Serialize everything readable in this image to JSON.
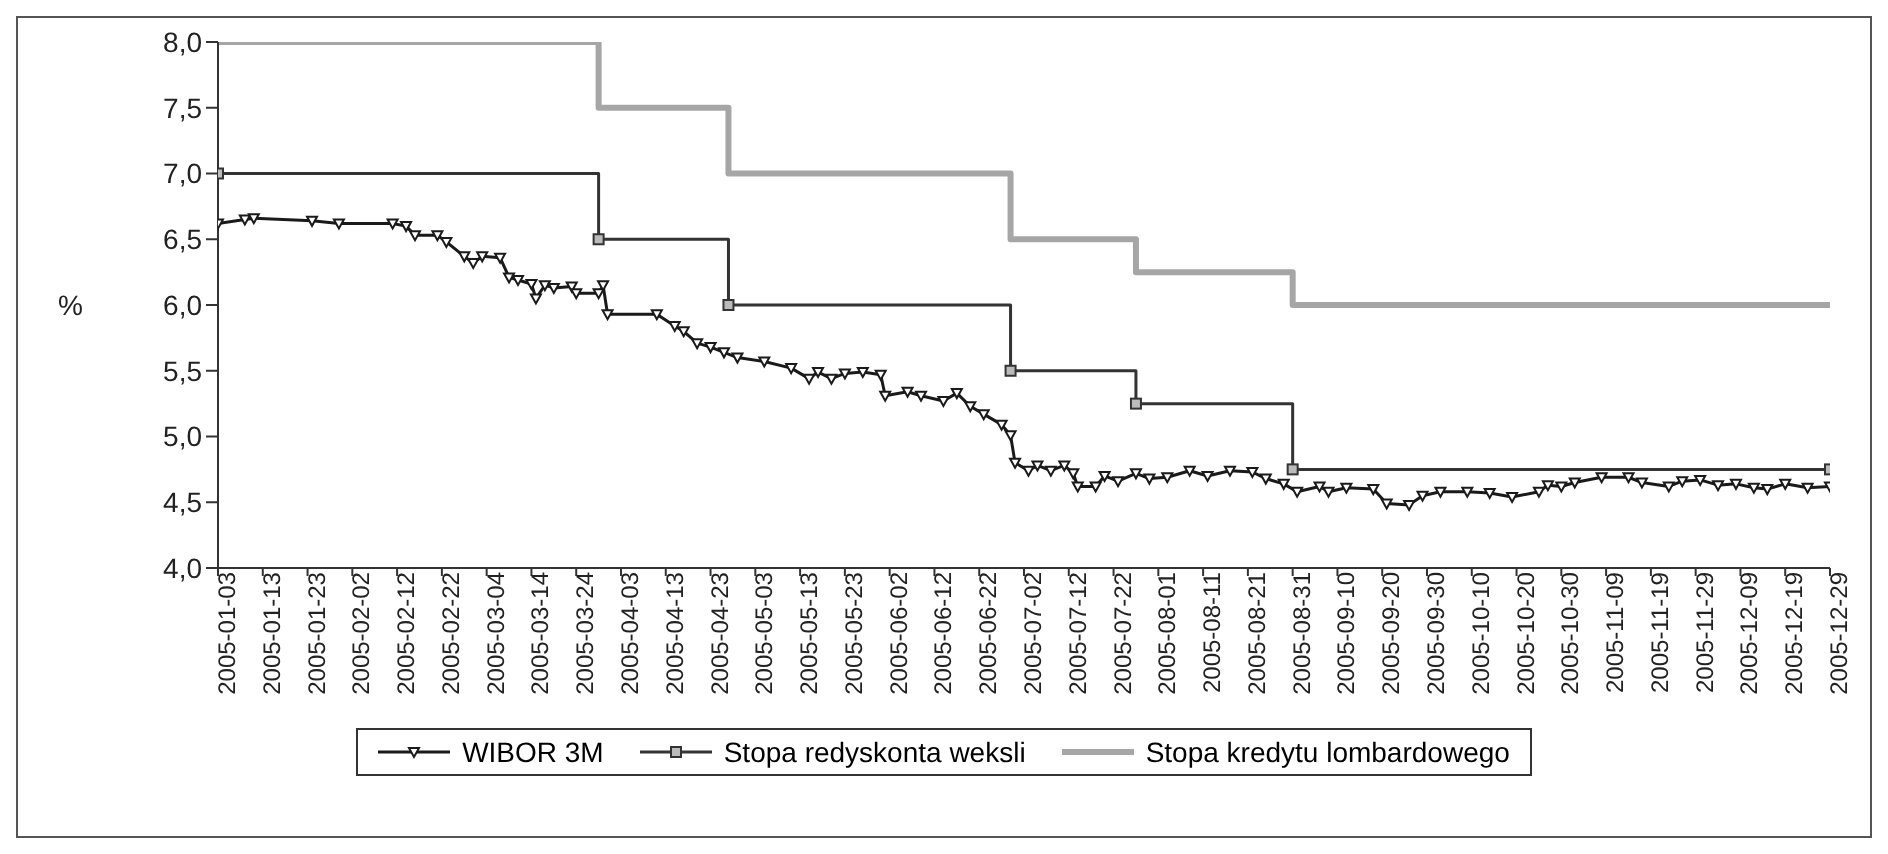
{
  "chart_data": {
    "type": "line",
    "ylabel": "%",
    "xlim": [
      "2005-01-03",
      "2005-12-29"
    ],
    "xticks": [
      "2005-01-03",
      "2005-01-13",
      "2005-01-23",
      "2005-02-02",
      "2005-02-12",
      "2005-02-22",
      "2005-03-04",
      "2005-03-14",
      "2005-03-24",
      "2005-04-03",
      "2005-04-13",
      "2005-04-23",
      "2005-05-03",
      "2005-05-13",
      "2005-05-23",
      "2005-06-02",
      "2005-06-12",
      "2005-06-22",
      "2005-07-02",
      "2005-07-12",
      "2005-07-22",
      "2005-08-01",
      "2005-08-11",
      "2005-08-21",
      "2005-08-31",
      "2005-09-10",
      "2005-09-20",
      "2005-09-30",
      "2005-10-10",
      "2005-10-20",
      "2005-10-30",
      "2005-11-09",
      "2005-11-19",
      "2005-11-29",
      "2005-12-09",
      "2005-12-19",
      "2005-12-29"
    ],
    "ylim": [
      4,
      8
    ],
    "yticks": [
      {
        "value": 4,
        "label": "4,0"
      },
      {
        "value": 4.5,
        "label": "4,5"
      },
      {
        "value": 5,
        "label": "5,0"
      },
      {
        "value": 5.5,
        "label": "5,5"
      },
      {
        "value": 6,
        "label": "6,0"
      },
      {
        "value": 6.5,
        "label": "6,5"
      },
      {
        "value": 7,
        "label": "7,0"
      },
      {
        "value": 7.5,
        "label": "7,5"
      },
      {
        "value": 8,
        "label": "8,0"
      }
    ],
    "legend": "bottom",
    "series": [
      {
        "name": "WIBOR 3M",
        "type": "line",
        "color": "#1a1a1a",
        "marker": "triangle",
        "x": [
          "2005-01-03",
          "2005-01-09",
          "2005-01-11",
          "2005-01-24",
          "2005-01-30",
          "2005-02-11",
          "2005-02-14",
          "2005-02-16",
          "2005-02-21",
          "2005-02-23",
          "2005-02-27",
          "2005-03-01",
          "2005-03-03",
          "2005-03-07",
          "2005-03-09",
          "2005-03-11",
          "2005-03-14",
          "2005-03-15",
          "2005-03-17",
          "2005-03-19",
          "2005-03-23",
          "2005-03-24",
          "2005-03-29",
          "2005-03-30",
          "2005-03-31",
          "2005-04-11",
          "2005-04-15",
          "2005-04-17",
          "2005-04-20",
          "2005-04-23",
          "2005-04-26",
          "2005-04-29",
          "2005-05-05",
          "2005-05-11",
          "2005-05-15",
          "2005-05-17",
          "2005-05-20",
          "2005-05-23",
          "2005-05-27",
          "2005-05-31",
          "2005-06-01",
          "2005-06-06",
          "2005-06-09",
          "2005-06-14",
          "2005-06-17",
          "2005-06-20",
          "2005-06-23",
          "2005-06-27",
          "2005-06-29",
          "2005-06-30",
          "2005-07-03",
          "2005-07-05",
          "2005-07-08",
          "2005-07-11",
          "2005-07-13",
          "2005-07-14",
          "2005-07-18",
          "2005-07-20",
          "2005-07-23",
          "2005-07-27",
          "2005-07-30",
          "2005-08-03",
          "2005-08-08",
          "2005-08-12",
          "2005-08-17",
          "2005-08-22",
          "2005-08-25",
          "2005-08-29",
          "2005-09-01",
          "2005-09-06",
          "2005-09-08",
          "2005-09-12",
          "2005-09-18",
          "2005-09-21",
          "2005-09-26",
          "2005-09-29",
          "2005-10-03",
          "2005-10-09",
          "2005-10-14",
          "2005-10-19",
          "2005-10-25",
          "2005-10-27",
          "2005-10-30",
          "2005-11-02",
          "2005-11-08",
          "2005-11-14",
          "2005-11-17",
          "2005-11-23",
          "2005-11-26",
          "2005-11-30",
          "2005-12-04",
          "2005-12-08",
          "2005-12-12",
          "2005-12-15",
          "2005-12-19",
          "2005-12-24",
          "2005-12-29"
        ],
        "values": [
          6.62,
          6.65,
          6.66,
          6.64,
          6.62,
          6.62,
          6.6,
          6.53,
          6.53,
          6.48,
          6.37,
          6.32,
          6.37,
          6.36,
          6.21,
          6.19,
          6.16,
          6.05,
          6.15,
          6.13,
          6.14,
          6.09,
          6.09,
          6.15,
          5.93,
          5.93,
          5.84,
          5.8,
          5.71,
          5.68,
          5.64,
          5.6,
          5.57,
          5.52,
          5.44,
          5.49,
          5.44,
          5.48,
          5.49,
          5.47,
          5.31,
          5.34,
          5.31,
          5.27,
          5.33,
          5.23,
          5.17,
          5.09,
          5.01,
          4.8,
          4.74,
          4.78,
          4.74,
          4.78,
          4.72,
          4.62,
          4.62,
          4.7,
          4.66,
          4.72,
          4.68,
          4.69,
          4.74,
          4.7,
          4.74,
          4.73,
          4.68,
          4.64,
          4.58,
          4.62,
          4.58,
          4.61,
          4.6,
          4.49,
          4.48,
          4.55,
          4.58,
          4.58,
          4.57,
          4.54,
          4.58,
          4.63,
          4.62,
          4.65,
          4.69,
          4.69,
          4.65,
          4.62,
          4.66,
          4.67,
          4.63,
          4.64,
          4.61,
          4.6,
          4.64,
          4.61,
          4.62
        ]
      },
      {
        "name": "Stopa redyskonta weksli",
        "type": "step",
        "color": "#333333",
        "marker": "square",
        "x": [
          "2005-01-03",
          "2005-03-29",
          "2005-04-27",
          "2005-06-29",
          "2005-07-27",
          "2005-08-31",
          "2005-12-29"
        ],
        "values": [
          7,
          6.5,
          6,
          5.5,
          5.25,
          4.75,
          4.75
        ]
      },
      {
        "name": "Stopa kredytu lombardowego",
        "type": "step",
        "color": "#a6a6a6",
        "marker": "none",
        "x": [
          "2005-01-03",
          "2005-03-29",
          "2005-04-27",
          "2005-06-29",
          "2005-07-27",
          "2005-08-31",
          "2005-12-29"
        ],
        "values": [
          8,
          7.5,
          7,
          6.5,
          6.25,
          6,
          6
        ]
      }
    ]
  }
}
